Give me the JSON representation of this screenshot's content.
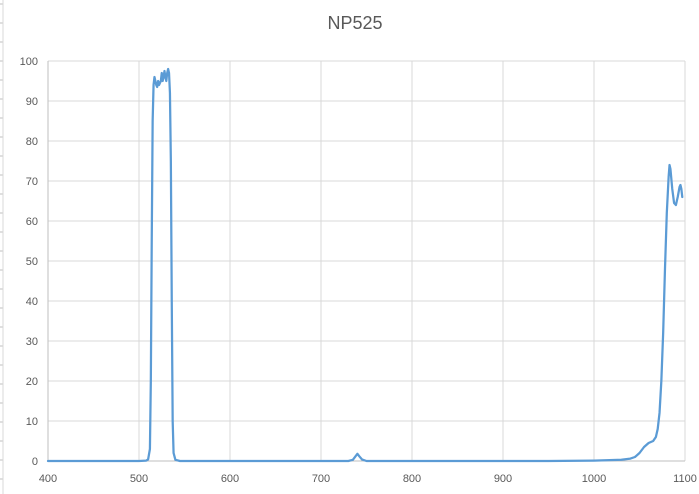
{
  "chart_data": {
    "type": "line",
    "title": "NP525",
    "xlabel": "",
    "ylabel": "",
    "xlim": [
      400,
      1100
    ],
    "ylim": [
      0,
      100
    ],
    "x_ticks": [
      400,
      500,
      600,
      700,
      800,
      900,
      1000,
      1100
    ],
    "y_ticks": [
      0,
      10,
      20,
      30,
      40,
      50,
      60,
      70,
      80,
      90,
      100
    ],
    "grid": true,
    "legend": "none",
    "series": [
      {
        "color": "#5b9bd5",
        "points": [
          [
            400,
            0
          ],
          [
            500,
            0
          ],
          [
            508,
            0.1
          ],
          [
            510,
            0.4
          ],
          [
            512,
            3
          ],
          [
            513,
            20
          ],
          [
            514,
            55
          ],
          [
            515,
            85
          ],
          [
            516,
            94
          ],
          [
            517,
            96
          ],
          [
            518,
            95
          ],
          [
            519,
            94
          ],
          [
            520,
            93.5
          ],
          [
            521,
            95
          ],
          [
            522,
            94
          ],
          [
            523,
            94.5
          ],
          [
            524,
            95
          ],
          [
            525,
            97
          ],
          [
            526,
            95
          ],
          [
            527,
            96
          ],
          [
            528,
            97.5
          ],
          [
            529,
            96
          ],
          [
            530,
            95
          ],
          [
            531,
            97
          ],
          [
            532,
            98
          ],
          [
            533,
            97
          ],
          [
            534,
            92
          ],
          [
            535,
            75
          ],
          [
            536,
            40
          ],
          [
            537,
            10
          ],
          [
            538,
            2
          ],
          [
            540,
            0.3
          ],
          [
            545,
            0
          ],
          [
            730,
            0
          ],
          [
            735,
            0.3
          ],
          [
            738,
            1.2
          ],
          [
            740,
            1.8
          ],
          [
            742,
            1.2
          ],
          [
            745,
            0.4
          ],
          [
            750,
            0
          ],
          [
            950,
            0
          ],
          [
            1000,
            0.1
          ],
          [
            1030,
            0.3
          ],
          [
            1040,
            0.6
          ],
          [
            1045,
            1
          ],
          [
            1050,
            2
          ],
          [
            1055,
            3.5
          ],
          [
            1060,
            4.5
          ],
          [
            1065,
            5
          ],
          [
            1068,
            6
          ],
          [
            1070,
            8
          ],
          [
            1072,
            12
          ],
          [
            1074,
            20
          ],
          [
            1076,
            32
          ],
          [
            1078,
            48
          ],
          [
            1080,
            62
          ],
          [
            1082,
            71
          ],
          [
            1083,
            74
          ],
          [
            1084,
            73
          ],
          [
            1086,
            68
          ],
          [
            1088,
            64.5
          ],
          [
            1090,
            64
          ],
          [
            1092,
            66
          ],
          [
            1094,
            68.5
          ],
          [
            1095,
            69
          ],
          [
            1096,
            68
          ],
          [
            1097,
            66
          ]
        ]
      }
    ]
  }
}
